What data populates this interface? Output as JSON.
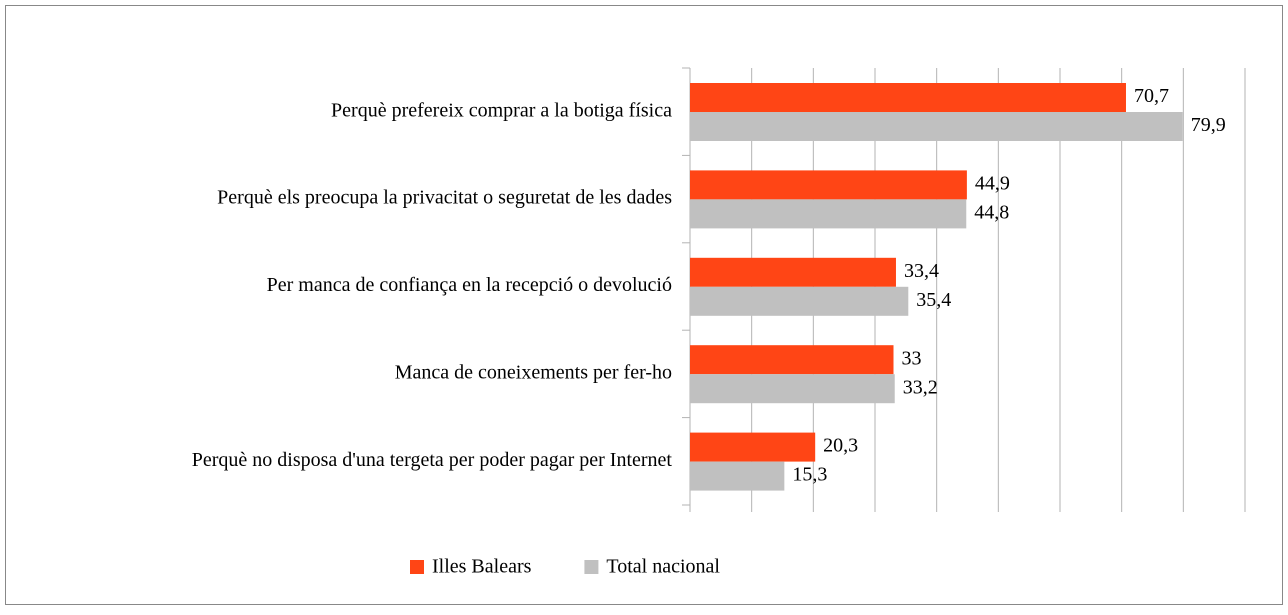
{
  "chart_data": {
    "type": "bar",
    "orientation": "horizontal",
    "categories": [
      "Perquè prefereix comprar a la botiga física",
      "Perquè els preocupa la privacitat o seguretat de les dades",
      "Per manca de confiança en la recepció o devolució",
      "Manca de coneixements per fer-ho",
      "Perquè no disposa d'una tergeta per poder pagar per Internet"
    ],
    "series": [
      {
        "name": "Illes Balears",
        "color": "#ff4515",
        "values": [
          70.7,
          44.9,
          33.4,
          33,
          20.3
        ],
        "value_labels": [
          "70,7",
          "44,9",
          "33,4",
          "33",
          "20,3"
        ]
      },
      {
        "name": "Total nacional",
        "color": "#c0c0c0",
        "values": [
          79.9,
          44.8,
          35.4,
          33.2,
          15.3
        ],
        "value_labels": [
          "79,9",
          "44,8",
          "35,4",
          "33,2",
          "15,3"
        ]
      }
    ],
    "xlim": [
      0,
      90
    ],
    "xticks": [
      0,
      10,
      20,
      30,
      40,
      50,
      60,
      70,
      80,
      90
    ],
    "grid": true,
    "legend": "bottom"
  }
}
